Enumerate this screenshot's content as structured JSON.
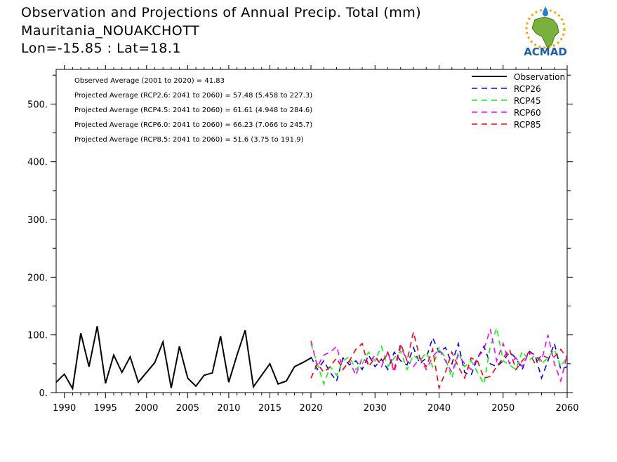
{
  "header": {
    "title": "Observation and Projections of Annual Precip. Total (mm)",
    "location": "Mauritania_NOUAKCHOTT",
    "coordinates": "Lon=-15.85 : Lat=18.1"
  },
  "logo": {
    "text": "ACMAD",
    "icon": "africa-sun-logo"
  },
  "colors": {
    "observation": "#000000",
    "rcp26": "#0000ff",
    "rcp45": "#00ff00",
    "rcp60": "#ff00ff",
    "rcp85": "#ff0000"
  },
  "chart_data": {
    "type": "line",
    "title": "Observation and Projections of Annual Precip. Total (mm)",
    "xlabel": "",
    "ylabel": "",
    "xlim": [
      1989,
      2060
    ],
    "ylim": [
      0,
      560
    ],
    "x_break": 2020,
    "x_ticks": [
      "1990",
      "1995",
      "2000",
      "2005",
      "2010",
      "2015",
      "2020",
      "2030",
      "2040",
      "2050",
      "2060"
    ],
    "y_ticks": [
      "0.",
      "100.",
      "200.",
      "300.",
      "400.",
      "500."
    ],
    "grid": false,
    "legend_position": "top-right",
    "annotations": [
      "Observed Average (2001 to 2020) = 41.83",
      "Projected Average (RCP2.6: 2041 to 2060) = 57.48 (5.458 to 227.3)",
      "Projected Average (RCP4.5: 2041 to 2060) = 61.61 (4.948 to 284.6)",
      "Projected Average (RCP6.0: 2041 to 2060) = 66.23 (7.066 to 245.7)",
      "Projected Average (RCP8.5: 2041 to 2060) = 51.6 (3.75 to 191.9)"
    ],
    "series": [
      {
        "name": "Observation",
        "style": "solid",
        "x": [
          1989,
          1990,
          1991,
          1992,
          1993,
          1994,
          1995,
          1996,
          1997,
          1998,
          1999,
          2000,
          2001,
          2002,
          2003,
          2004,
          2005,
          2006,
          2007,
          2008,
          2009,
          2010,
          2011,
          2012,
          2013,
          2014,
          2015,
          2016,
          2017,
          2018,
          2019,
          2020
        ],
        "values": [
          18,
          32,
          7,
          103,
          45,
          115,
          16,
          65,
          35,
          62,
          18,
          35,
          52,
          88,
          8,
          80,
          25,
          11,
          30,
          34,
          98,
          18,
          65,
          108,
          10,
          30,
          50,
          15,
          20,
          45,
          52,
          60
        ]
      },
      {
        "name": "RCP26",
        "style": "dashed",
        "x": [
          2020,
          2021,
          2022,
          2023,
          2024,
          2025,
          2026,
          2027,
          2028,
          2029,
          2030,
          2031,
          2032,
          2033,
          2034,
          2035,
          2036,
          2037,
          2038,
          2039,
          2040,
          2041,
          2042,
          2043,
          2044,
          2045,
          2046,
          2047,
          2048,
          2049,
          2050,
          2051,
          2052,
          2053,
          2054,
          2055,
          2056,
          2057,
          2058,
          2059,
          2060
        ],
        "values": [
          62,
          40,
          55,
          35,
          20,
          60,
          48,
          55,
          40,
          65,
          45,
          58,
          40,
          70,
          55,
          48,
          78,
          50,
          60,
          95,
          70,
          78,
          50,
          85,
          35,
          30,
          60,
          80,
          50,
          45,
          55,
          70,
          60,
          40,
          72,
          65,
          25,
          55,
          85,
          40,
          45
        ]
      },
      {
        "name": "RCP45",
        "style": "dashed",
        "x": [
          2020,
          2021,
          2022,
          2023,
          2024,
          2025,
          2026,
          2027,
          2028,
          2029,
          2030,
          2031,
          2032,
          2033,
          2034,
          2035,
          2036,
          2037,
          2038,
          2039,
          2040,
          2041,
          2042,
          2043,
          2044,
          2045,
          2046,
          2047,
          2048,
          2049,
          2050,
          2051,
          2052,
          2053,
          2054,
          2055,
          2056,
          2057,
          2058,
          2059,
          2060
        ],
        "values": [
          85,
          50,
          15,
          45,
          30,
          55,
          62,
          40,
          50,
          70,
          55,
          80,
          45,
          60,
          72,
          40,
          65,
          55,
          70,
          45,
          78,
          60,
          25,
          70,
          45,
          55,
          35,
          15,
          80,
          112,
          55,
          48,
          40,
          72,
          55,
          65,
          50,
          60,
          75,
          45,
          62
        ]
      },
      {
        "name": "RCP60",
        "style": "dashed",
        "x": [
          2020,
          2021,
          2022,
          2023,
          2024,
          2025,
          2026,
          2027,
          2028,
          2029,
          2030,
          2031,
          2032,
          2033,
          2034,
          2035,
          2036,
          2037,
          2038,
          2039,
          2040,
          2041,
          2042,
          2043,
          2044,
          2045,
          2046,
          2047,
          2048,
          2049,
          2050,
          2051,
          2052,
          2053,
          2054,
          2055,
          2056,
          2057,
          2058,
          2059,
          2060
        ],
        "values": [
          90,
          45,
          65,
          70,
          80,
          40,
          55,
          30,
          60,
          50,
          65,
          45,
          70,
          35,
          80,
          55,
          45,
          60,
          40,
          62,
          75,
          55,
          35,
          65,
          50,
          40,
          60,
          75,
          110,
          55,
          85,
          50,
          60,
          45,
          70,
          65,
          55,
          100,
          50,
          20,
          65
        ]
      },
      {
        "name": "RCP85",
        "style": "dashed",
        "x": [
          2020,
          2021,
          2022,
          2023,
          2024,
          2025,
          2026,
          2027,
          2028,
          2029,
          2030,
          2031,
          2032,
          2033,
          2034,
          2035,
          2036,
          2037,
          2038,
          2039,
          2040,
          2041,
          2042,
          2043,
          2044,
          2045,
          2046,
          2047,
          2048,
          2049,
          2050,
          2051,
          2052,
          2053,
          2054,
          2055,
          2056,
          2057,
          2058,
          2059,
          2060
        ],
        "values": [
          25,
          50,
          35,
          45,
          60,
          40,
          55,
          75,
          85,
          45,
          60,
          50,
          70,
          40,
          85,
          55,
          105,
          60,
          45,
          75,
          8,
          35,
          70,
          45,
          25,
          60,
          55,
          25,
          28,
          45,
          60,
          75,
          40,
          55,
          70,
          50,
          65,
          60,
          62,
          75,
          60
        ]
      }
    ]
  }
}
